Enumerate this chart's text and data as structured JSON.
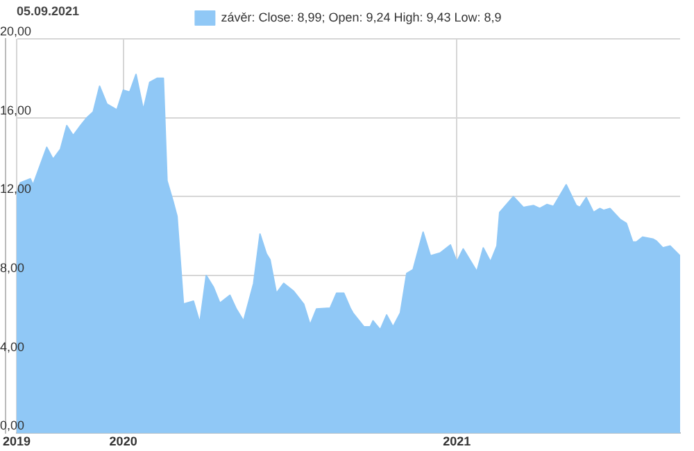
{
  "chart_data": {
    "type": "area",
    "annotations": [
      "05.09.2021"
    ],
    "x": [
      "2019-09-06",
      "2019-09-10",
      "2019-09-21",
      "2019-09-24",
      "2019-10-09",
      "2019-10-16",
      "2019-10-24",
      "2019-10-31",
      "2019-11-07",
      "2019-11-15",
      "2019-11-22",
      "2019-11-29",
      "2019-12-06",
      "2019-12-14",
      "2019-12-25",
      "2020-01-01",
      "2020-01-08",
      "2020-01-15",
      "2020-01-23",
      "2020-01-30",
      "2020-02-07",
      "2020-02-14",
      "2020-02-18",
      "2020-02-25",
      "2020-02-29",
      "2020-03-07",
      "2020-03-18",
      "2020-03-25",
      "2020-04-01",
      "2020-04-09",
      "2020-04-16",
      "2020-04-27",
      "2020-05-04",
      "2020-05-12",
      "2020-05-23",
      "2020-05-30",
      "2020-06-06",
      "2020-06-10",
      "2020-06-17",
      "2020-06-25",
      "2020-07-06",
      "2020-07-17",
      "2020-07-24",
      "2020-07-31",
      "2020-08-15",
      "2020-08-22",
      "2020-08-30",
      "2020-09-06",
      "2020-09-09",
      "2020-09-21",
      "2020-09-28",
      "2020-10-01",
      "2020-10-09",
      "2020-10-16",
      "2020-10-23",
      "2020-10-31",
      "2020-11-07",
      "2020-11-14",
      "2020-11-25",
      "2020-12-03",
      "2020-12-14",
      "2020-12-25",
      "2021-01-01",
      "2021-01-08",
      "2021-01-23",
      "2021-01-30",
      "2021-02-07",
      "2021-02-14",
      "2021-02-17",
      "2021-03-04",
      "2021-03-15",
      "2021-03-26",
      "2021-04-02",
      "2021-04-10",
      "2021-04-17",
      "2021-05-01",
      "2021-05-12",
      "2021-05-16",
      "2021-05-23",
      "2021-05-31",
      "2021-06-07",
      "2021-06-11",
      "2021-06-18",
      "2021-06-29",
      "2021-07-06",
      "2021-07-13",
      "2021-07-17",
      "2021-07-24",
      "2021-08-04",
      "2021-08-08",
      "2021-08-15",
      "2021-08-23",
      "2021-09-03"
    ],
    "series": [
      {
        "name": "závěr: Close: 8,99; Open: 9,24 High: 9,43 Low: 8,9",
        "color": "#90c8f6",
        "values": [
          12.15,
          12.7,
          12.9,
          12.6,
          14.5,
          13.9,
          14.4,
          15.6,
          15.1,
          15.6,
          16.0,
          16.3,
          17.6,
          16.7,
          16.4,
          17.4,
          17.3,
          18.2,
          16.4,
          17.8,
          18.0,
          18.0,
          12.8,
          11.7,
          11.0,
          6.55,
          6.7,
          5.6,
          8.0,
          7.4,
          6.6,
          7.0,
          6.3,
          5.7,
          7.6,
          10.1,
          9.1,
          8.8,
          7.1,
          7.6,
          7.2,
          6.55,
          5.5,
          6.3,
          6.35,
          7.1,
          7.1,
          6.35,
          6.1,
          5.4,
          5.4,
          5.7,
          5.25,
          6.0,
          5.4,
          6.1,
          8.1,
          8.3,
          10.2,
          9.0,
          9.15,
          9.55,
          8.7,
          9.35,
          8.2,
          9.4,
          8.7,
          9.5,
          11.2,
          12.0,
          11.45,
          11.55,
          11.4,
          11.6,
          11.5,
          12.6,
          11.55,
          11.45,
          11.95,
          11.2,
          11.4,
          11.3,
          11.4,
          10.85,
          10.65,
          9.7,
          9.7,
          9.95,
          9.85,
          9.75,
          9.4,
          9.5,
          8.99
        ]
      }
    ],
    "xlim": [
      "2019-09-06",
      "2021-09-03"
    ],
    "xticks": [
      {
        "value": "2019-09-06",
        "label": "2019"
      },
      "2020",
      "2021"
    ],
    "ylim": [
      0,
      20
    ],
    "yticks": [
      {
        "value": 0,
        "label": "0,00"
      },
      {
        "value": 4,
        "label": "4,00"
      },
      {
        "value": 8,
        "label": "8,00"
      },
      {
        "value": 12,
        "label": "12,00"
      },
      {
        "value": 16,
        "label": "16,00"
      },
      {
        "value": 20,
        "label": "20,00"
      }
    ],
    "grid": true,
    "legend": "top",
    "marker": "none"
  }
}
